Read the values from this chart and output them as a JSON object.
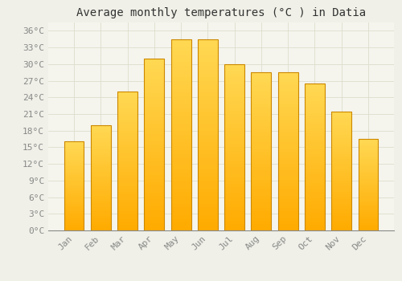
{
  "title": "Average monthly temperatures (°C ) in Datia",
  "months": [
    "Jan",
    "Feb",
    "Mar",
    "Apr",
    "May",
    "Jun",
    "Jul",
    "Aug",
    "Sep",
    "Oct",
    "Nov",
    "Dec"
  ],
  "values": [
    16,
    19,
    25,
    31,
    34.5,
    34.5,
    30,
    28.5,
    28.5,
    26.5,
    21.5,
    16.5
  ],
  "bar_color_top": "#FFCC55",
  "bar_color_bottom": "#FFAA00",
  "bar_edge_color": "#CC8800",
  "background_color": "#F0F0E8",
  "plot_bg_color": "#F5F5EE",
  "grid_color": "#DDDDCC",
  "yticks": [
    0,
    3,
    6,
    9,
    12,
    15,
    18,
    21,
    24,
    27,
    30,
    33,
    36
  ],
  "ylim": [
    0,
    37.5
  ],
  "title_fontsize": 10,
  "tick_fontsize": 8,
  "tick_color": "#888888",
  "title_color": "#333333",
  "font_family": "monospace",
  "bar_width": 0.75
}
